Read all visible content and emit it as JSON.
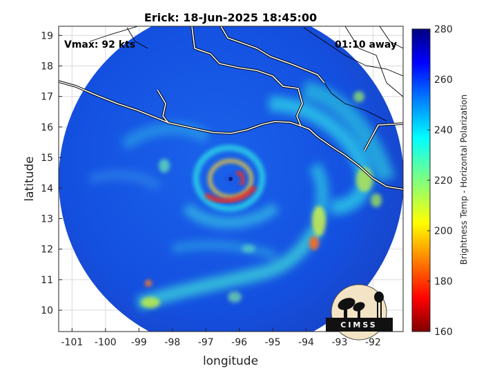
{
  "title": "Erick: 18-Jun-2025 18:45:00",
  "annotations": {
    "vmax": "Vmax: 92 kts",
    "away": "01:10 away"
  },
  "axes": {
    "xlabel": "longitude",
    "ylabel": "latitude",
    "xlim": [
      -101.4,
      -91.1
    ],
    "ylim": [
      9.3,
      19.3
    ],
    "xticks": [
      "-101",
      "-100",
      "-99",
      "-98",
      "-97",
      "-96",
      "-95",
      "-94",
      "-93",
      "-92"
    ],
    "yticks": [
      "10",
      "11",
      "12",
      "13",
      "14",
      "15",
      "16",
      "17",
      "18",
      "19"
    ],
    "grid": true
  },
  "colorbar": {
    "label": "Brightness Temp - Horizontal Polarization",
    "range": [
      160,
      280
    ],
    "ticks": [
      "160",
      "180",
      "200",
      "220",
      "240",
      "260",
      "280"
    ],
    "colormap": "jet"
  },
  "storm": {
    "name": "Erick",
    "center": {
      "lon": -96.05,
      "lat": 14.25
    },
    "colors": {
      "background": "#1450e6",
      "eyewall": "#ff2a10",
      "band": "#2ee0e6"
    }
  },
  "logo": {
    "text": "CIMSS"
  }
}
